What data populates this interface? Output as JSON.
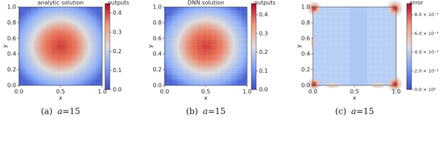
{
  "chart_data": [
    {
      "type": "heatmap",
      "title": "analytic solution",
      "xlabel": "x",
      "ylabel": "y",
      "xlim": [
        0,
        1
      ],
      "ylim": [
        0,
        1
      ],
      "xticks": [
        {
          "value": 0,
          "label": "0.0"
        },
        {
          "value": 0.5,
          "label": "0.5"
        },
        {
          "value": 1,
          "label": "1.0"
        }
      ],
      "yticks": [
        {
          "value": 0,
          "label": "0.0"
        },
        {
          "value": 0.2,
          "label": "0.2"
        },
        {
          "value": 0.4,
          "label": "0.4"
        },
        {
          "value": 0.6,
          "label": "0.6"
        },
        {
          "value": 0.8,
          "label": "0.8"
        },
        {
          "value": 1,
          "label": "1.0"
        }
      ],
      "colorbar_label": "outputs",
      "clim": [
        0,
        0.45
      ],
      "cticks": [
        {
          "value": 0,
          "label": "0.0"
        },
        {
          "value": 0.1,
          "label": "0.1"
        },
        {
          "value": 0.2,
          "label": "0.2"
        },
        {
          "value": 0.3,
          "label": "0.3"
        },
        {
          "value": 0.4,
          "label": "0.4"
        }
      ],
      "caption": {
        "tag": "(a)",
        "var": "a",
        "eq": "=15"
      }
    },
    {
      "type": "heatmap",
      "title": "DNN solution",
      "xlabel": "x",
      "ylabel": "y",
      "xlim": [
        0,
        1
      ],
      "ylim": [
        0,
        1
      ],
      "xticks": [
        {
          "value": 0,
          "label": "0.0"
        },
        {
          "value": 0.5,
          "label": "0.5"
        },
        {
          "value": 1,
          "label": "1.0"
        }
      ],
      "yticks": [
        {
          "value": 0,
          "label": "0.0"
        },
        {
          "value": 0.2,
          "label": "0.2"
        },
        {
          "value": 0.4,
          "label": "0.4"
        },
        {
          "value": 0.6,
          "label": "0.6"
        },
        {
          "value": 0.8,
          "label": "0.8"
        },
        {
          "value": 1,
          "label": "1.0"
        }
      ],
      "colorbar_label": "outputs",
      "clim": [
        0,
        0.46
      ],
      "cticks": [
        {
          "value": 0,
          "label": "0.0"
        },
        {
          "value": 0.1,
          "label": "0.1"
        },
        {
          "value": 0.2,
          "label": "0.2"
        },
        {
          "value": 0.3,
          "label": "0.3"
        },
        {
          "value": 0.4,
          "label": "0.4"
        }
      ],
      "caption": {
        "tag": "(b)",
        "var": "a",
        "eq": "=15"
      }
    },
    {
      "type": "heatmap",
      "title": "",
      "xlabel": "x",
      "ylabel": "y",
      "xlim": [
        0,
        1
      ],
      "ylim": [
        0,
        1
      ],
      "xticks": [
        {
          "value": 0,
          "label": "0.0"
        },
        {
          "value": 0.5,
          "label": "0.5"
        },
        {
          "value": 1,
          "label": "1.0"
        }
      ],
      "yticks": [
        {
          "value": 0,
          "label": "0.0"
        },
        {
          "value": 0.2,
          "label": "0.2"
        },
        {
          "value": 0.4,
          "label": "0.4"
        },
        {
          "value": 0.6,
          "label": "0.6"
        },
        {
          "value": 0.8,
          "label": "0.8"
        },
        {
          "value": 1,
          "label": "1.0"
        }
      ],
      "colorbar_label": "error",
      "clim": [
        0,
        0.0092
      ],
      "cticks": [
        {
          "value": 0,
          "label": "0.0 × 10⁰"
        },
        {
          "value": 0.002,
          "label": "2.0 × 10⁻³"
        },
        {
          "value": 0.004,
          "label": "4.0 × 10⁻³"
        },
        {
          "value": 0.006,
          "label": "6.0 × 10⁻³"
        },
        {
          "value": 0.008,
          "label": "8.0 × 10⁻³"
        }
      ],
      "caption": {
        "tag": "(c)",
        "var": "a",
        "eq": "=15"
      }
    }
  ]
}
